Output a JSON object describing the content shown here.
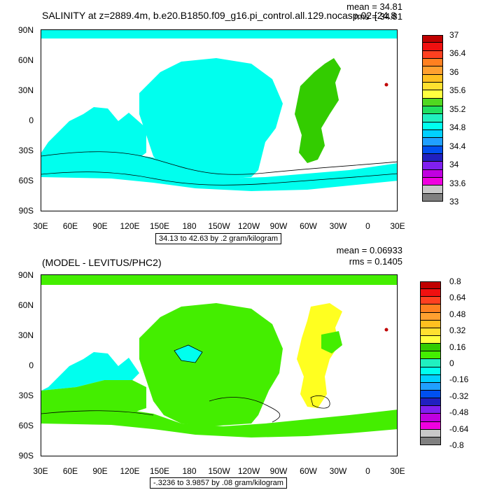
{
  "panel_top": {
    "title": "SALINITY at z=2889.4m, b.e20.B1850.f09_g16.pi_control.all.129.nocasp.02 [24.8",
    "mean": "mean = 34.81",
    "rms": "rms = 34.81",
    "range_text": "34.13 to 42.63 by .2 gram/kilogram",
    "colorbar_labels": [
      "37",
      "36.4",
      "36",
      "35.6",
      "35.2",
      "34.8",
      "34.4",
      "34",
      "33.6",
      "33"
    ],
    "colorbar_colors": [
      "#c00000",
      "#f01010",
      "#ff4020",
      "#ff8020",
      "#ffa030",
      "#ffc020",
      "#ffe030",
      "#ffff40",
      "#50d820",
      "#20e060",
      "#20f0c0",
      "#00ffee",
      "#00d0ff",
      "#20a0ff",
      "#0050f0",
      "#2020c0",
      "#8020f0",
      "#c000e0",
      "#f000e0",
      "#c8c8c8",
      "#808080"
    ],
    "fill_main": "#00ffee",
    "fill_atlantic": "#33cc00"
  },
  "panel_bottom": {
    "title": "(MODEL - LEVITUS/PHC2)",
    "mean": "mean = 0.06933",
    "rms": "rms = 0.1405",
    "range_text": "-.3236 to 3.9857 by .08 gram/kilogram",
    "colorbar_labels": [
      "0.8",
      "0.64",
      "0.48",
      "0.32",
      "0.16",
      "0",
      "-0.16",
      "-0.32",
      "-0.48",
      "-0.64",
      "-0.8"
    ],
    "colorbar_colors": [
      "#c00000",
      "#f01010",
      "#ff4020",
      "#ff8020",
      "#ffa030",
      "#ffc020",
      "#ffe030",
      "#ffff40",
      "#33cc00",
      "#44ee00",
      "#20f0c0",
      "#00ffee",
      "#00d0ff",
      "#20a0ff",
      "#0050f0",
      "#2020c0",
      "#8020f0",
      "#c000e0",
      "#f000e0",
      "#c8c8c8",
      "#808080"
    ],
    "fill_main": "#44ee00",
    "fill_alt": "#00ffee",
    "fill_yellow": "#ffff20"
  },
  "lat_labels": [
    "90N",
    "60N",
    "30N",
    "0",
    "30S",
    "60S",
    "90S"
  ],
  "lon_labels": [
    "30E",
    "60E",
    "90E",
    "120E",
    "150E",
    "180",
    "150W",
    "120W",
    "90W",
    "60W",
    "30W",
    "0",
    "30E"
  ]
}
